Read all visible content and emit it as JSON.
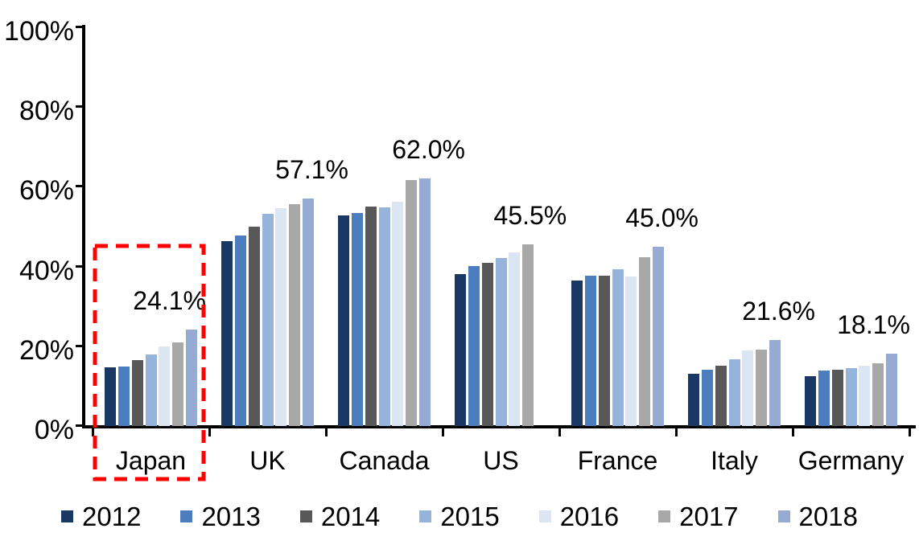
{
  "chart_data": {
    "type": "bar",
    "title": "",
    "categories": [
      "Japan",
      "UK",
      "Canada",
      "US",
      "France",
      "Italy",
      "Germany"
    ],
    "series": [
      {
        "name": "2012",
        "color": "#1A3864",
        "values": [
          14.8,
          46.3,
          52.9,
          38.2,
          36.5,
          13.2,
          12.4
        ]
      },
      {
        "name": "2013",
        "color": "#4C7EBF",
        "values": [
          15.0,
          47.8,
          53.4,
          40.1,
          37.7,
          14.1,
          13.9
        ]
      },
      {
        "name": "2014",
        "color": "#585858",
        "values": [
          16.6,
          50.0,
          55.0,
          40.9,
          37.7,
          15.2,
          14.2
        ]
      },
      {
        "name": "2015",
        "color": "#95B3DB",
        "values": [
          17.9,
          53.3,
          54.8,
          42.1,
          39.4,
          16.7,
          14.6
        ]
      },
      {
        "name": "2016",
        "color": "#DCE6F2",
        "values": [
          19.9,
          54.6,
          56.2,
          43.5,
          37.5,
          18.9,
          15.2
        ]
      },
      {
        "name": "2017",
        "color": "#A8A8A8",
        "values": [
          21.0,
          55.6,
          61.6,
          45.5,
          42.3,
          19.1,
          15.8
        ]
      },
      {
        "name": "2018",
        "color": "#96AAD3",
        "values": [
          24.1,
          57.1,
          62.0,
          null,
          45.0,
          21.6,
          18.1
        ]
      }
    ],
    "data_labels": [
      "24.1%",
      "57.1%",
      "62.0%",
      "45.5%",
      "45.0%",
      "21.6%",
      "18.1%"
    ],
    "ylim": [
      0,
      100
    ],
    "y_tick_labels": [
      "0%",
      "20%",
      "40%",
      "60%",
      "80%",
      "100%"
    ],
    "y_tick_values": [
      0,
      20,
      40,
      60,
      80,
      100
    ],
    "grid": false,
    "legend_position": "bottom",
    "legend_labels": [
      "2012",
      "2013",
      "2014",
      "2015",
      "2016",
      "2017",
      "2018"
    ],
    "highlight": {
      "category": "Japan",
      "shape": "dashed-rectangle",
      "color": "#FF0000"
    },
    "label_dx": [
      -27,
      5,
      5,
      3,
      5,
      5,
      -22
    ]
  }
}
